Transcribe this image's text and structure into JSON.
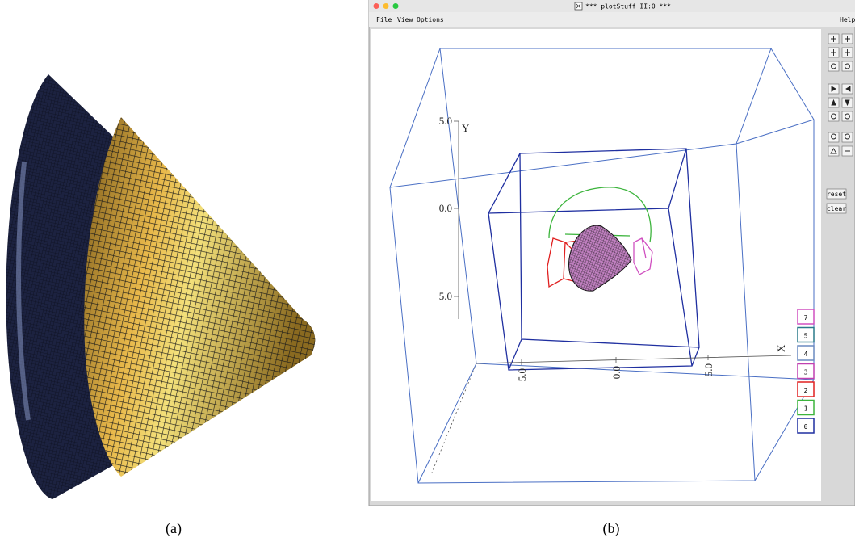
{
  "panel_a": {
    "caption": "(a)"
  },
  "panel_b": {
    "caption": "(b)",
    "window": {
      "title": "*** plotStuff II:0 ***",
      "menu": [
        "File",
        "View",
        "Options"
      ],
      "help": "Help"
    },
    "buttons": [
      "reset",
      "clear"
    ],
    "plot": {
      "y_axis": {
        "label": "Y",
        "ticks": [
          "5.0",
          "0.0",
          "−5.0"
        ]
      },
      "x_axis": {
        "label": "X",
        "ticks": [
          "−5.0",
          "0.0",
          "5.0"
        ]
      },
      "grids": [
        "7",
        "5",
        "4",
        "3",
        "2",
        "1",
        "0"
      ]
    }
  }
}
